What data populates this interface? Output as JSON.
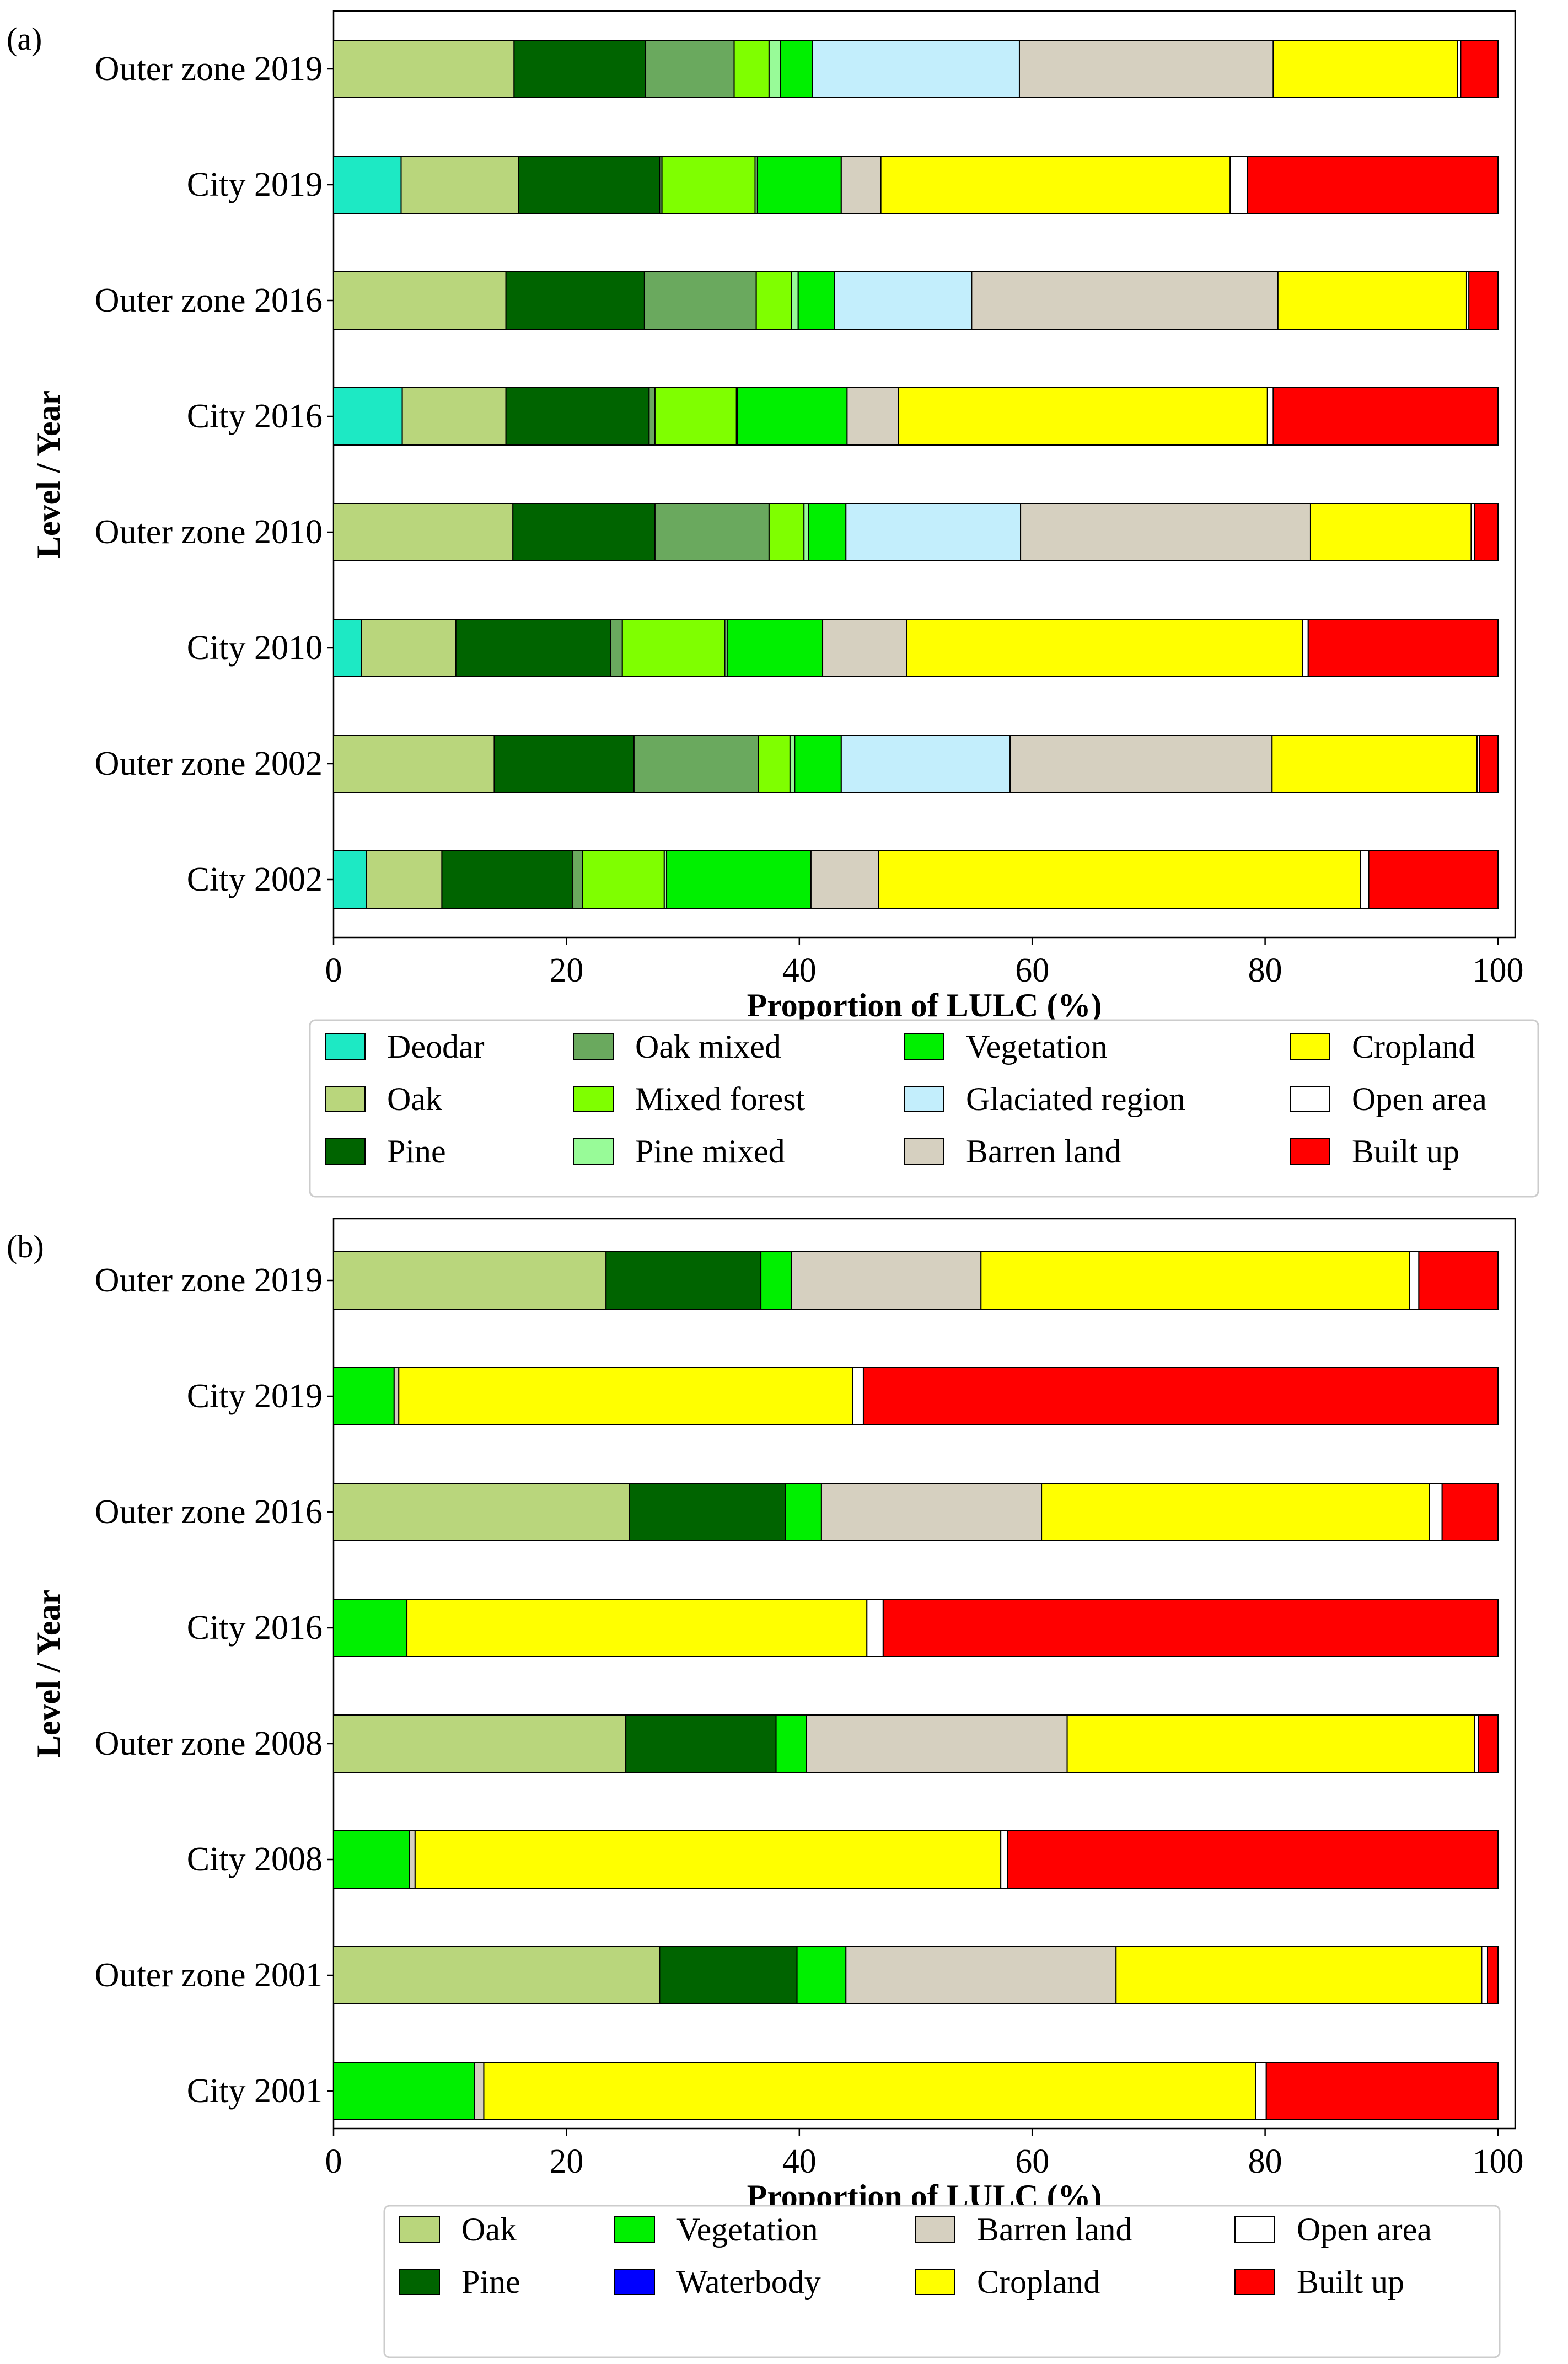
{
  "chart_data": [
    {
      "type": "bar",
      "orientation": "horizontal",
      "stacked": true,
      "panel_label": "(a)",
      "xlabel": "Proportion of LULC (%)",
      "ylabel": "Level / Year",
      "xlim": [
        0,
        100
      ],
      "xticks": [
        0,
        20,
        40,
        60,
        80,
        100
      ],
      "grid": false,
      "legend_position": "below",
      "categories": [
        "Outer zone 2019",
        "City 2019",
        "Outer zone 2016",
        "City 2016",
        "Outer zone 2010",
        "City 2010",
        "Outer zone 2002",
        "City 2002"
      ],
      "series": [
        {
          "name": "Deodar",
          "color": "#1de9c4",
          "values": [
            0,
            5.8,
            0,
            5.9,
            0,
            2.4,
            0,
            2.8
          ]
        },
        {
          "name": "Oak",
          "color": "#b9d67c",
          "values": [
            15.5,
            10.1,
            14.8,
            8.9,
            15.4,
            8.1,
            13.8,
            6.5
          ]
        },
        {
          "name": "Pine",
          "color": "#006400",
          "values": [
            11.3,
            12.1,
            11.9,
            12.3,
            12.2,
            13.3,
            12.0,
            11.2
          ]
        },
        {
          "name": "Oak mixed",
          "color": "#6aa95e",
          "values": [
            7.6,
            0.2,
            9.6,
            0.5,
            9.8,
            1.0,
            10.7,
            0.9
          ]
        },
        {
          "name": "Mixed forest",
          "color": "#7fff00",
          "values": [
            3.0,
            8.0,
            3.0,
            7.0,
            3.0,
            8.8,
            2.7,
            7.0
          ]
        },
        {
          "name": "Pine mixed",
          "color": "#98fb98",
          "values": [
            1.0,
            0.2,
            0.6,
            0.1,
            0.4,
            0.2,
            0.4,
            0.2
          ]
        },
        {
          "name": "Vegetation",
          "color": "#00f000",
          "values": [
            2.7,
            7.2,
            3.1,
            9.4,
            3.2,
            8.2,
            4.0,
            12.4
          ]
        },
        {
          "name": "Glaciated region",
          "color": "#c3eefc",
          "values": [
            17.8,
            0,
            11.8,
            0,
            15.0,
            0,
            14.5,
            0
          ]
        },
        {
          "name": "Barren land",
          "color": "#d6d0c0",
          "values": [
            21.8,
            3.4,
            26.3,
            4.4,
            24.9,
            7.2,
            22.5,
            5.8
          ]
        },
        {
          "name": "Cropland",
          "color": "#ffff00",
          "values": [
            15.8,
            30.0,
            16.2,
            31.7,
            13.8,
            34.0,
            17.6,
            41.4
          ]
        },
        {
          "name": "Open area",
          "color": "#ffffff",
          "values": [
            0.3,
            1.5,
            0.2,
            0.5,
            0.3,
            0.5,
            0.2,
            0.7
          ]
        },
        {
          "name": "Built up",
          "color": "#ff0000",
          "values": [
            3.2,
            21.5,
            2.5,
            19.3,
            2.0,
            16.3,
            1.6,
            11.1
          ]
        }
      ]
    },
    {
      "type": "bar",
      "orientation": "horizontal",
      "stacked": true,
      "panel_label": "(b)",
      "xlabel": "Proportion of LULC (%)",
      "ylabel": "Level / Year",
      "xlim": [
        0,
        100
      ],
      "xticks": [
        0,
        20,
        40,
        60,
        80,
        100
      ],
      "grid": false,
      "legend_position": "below",
      "categories": [
        "Outer zone 2019",
        "City 2019",
        "Outer zone 2016",
        "City 2016",
        "Outer zone 2008",
        "City 2008",
        "Outer zone 2001",
        "City 2001"
      ],
      "series": [
        {
          "name": "Oak",
          "color": "#b9d67c",
          "values": [
            23.4,
            0,
            25.4,
            0,
            25.1,
            0,
            28.0,
            0
          ]
        },
        {
          "name": "Pine",
          "color": "#006400",
          "values": [
            13.3,
            0,
            13.4,
            0,
            12.9,
            0,
            11.8,
            0
          ]
        },
        {
          "name": "Vegetation",
          "color": "#00f000",
          "values": [
            2.6,
            5.2,
            3.1,
            6.3,
            2.6,
            6.5,
            4.2,
            12.1
          ]
        },
        {
          "name": "Waterbody",
          "color": "#0000ff",
          "values": [
            0,
            0,
            0,
            0,
            0,
            0,
            0,
            0
          ]
        },
        {
          "name": "Barren land",
          "color": "#d6d0c0",
          "values": [
            16.3,
            0.4,
            18.9,
            0,
            22.4,
            0.5,
            23.2,
            0.8
          ]
        },
        {
          "name": "Cropland",
          "color": "#ffff00",
          "values": [
            36.8,
            39.0,
            33.3,
            39.5,
            35.0,
            50.3,
            31.4,
            66.3
          ]
        },
        {
          "name": "Open area",
          "color": "#ffffff",
          "values": [
            0.8,
            0.9,
            1.1,
            1.4,
            0.3,
            0.6,
            0.5,
            0.9
          ]
        },
        {
          "name": "Built up",
          "color": "#ff0000",
          "values": [
            6.8,
            54.5,
            4.8,
            52.8,
            1.7,
            42.1,
            0.9,
            19.9
          ]
        }
      ]
    }
  ]
}
